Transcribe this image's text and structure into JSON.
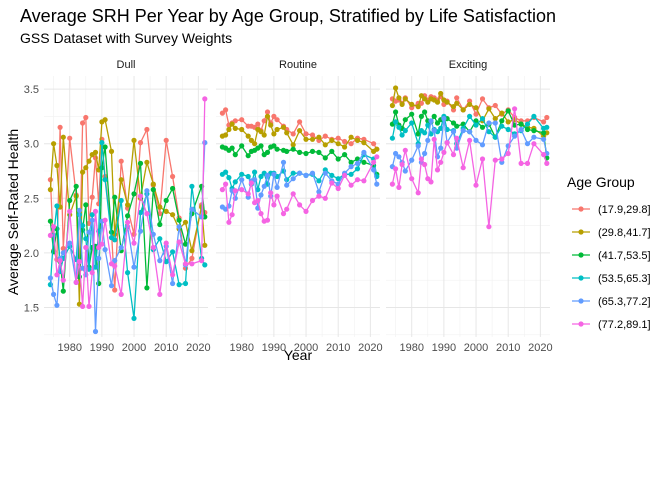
{
  "chart_data": {
    "type": "line",
    "title": "Average SRH Per Year by Age Group, Stratified by Life Satisfaction",
    "subtitle": "GSS Dataset with Survey Weights",
    "xlabel": "Year",
    "ylabel": "Average Self-Rated Health",
    "xlim": [
      1972,
      2023
    ],
    "ylim": [
      1.23,
      3.62
    ],
    "x_ticks": [
      "1980",
      "1990",
      "2000",
      "2010",
      "2020"
    ],
    "y_ticks": [
      "1.5",
      "2.0",
      "2.5",
      "3.0",
      "3.5"
    ],
    "grid": true,
    "legend": {
      "title": "Age Group",
      "position": "right",
      "entries": [
        "(17.9,29.8]",
        "(29.8,41.7]",
        "(41.7,53.5]",
        "(53.5,65.3]",
        "(65.3,77.2]",
        "(77.2,89.1]"
      ]
    },
    "colors": [
      "#F8766D",
      "#B79F00",
      "#00BA38",
      "#00BFC4",
      "#619CFF",
      "#F564E3"
    ],
    "years": [
      1974,
      1975,
      1976,
      1977,
      1978,
      1980,
      1982,
      1983,
      1984,
      1985,
      1986,
      1987,
      1988,
      1989,
      1990,
      1991,
      1993,
      1994,
      1996,
      1998,
      2000,
      2002,
      2004,
      2006,
      2008,
      2010,
      2012,
      2014,
      2016,
      2018,
      2021,
      2022
    ],
    "panels": [
      {
        "label": "Dull",
        "series": [
          {
            "values": [
              2.67,
              2.02,
              1.94,
              3.15,
              2.04,
              3.05,
              2.53,
              1.85,
              3.19,
              3.24,
              2.27,
              2.51,
              2.87,
              2.45,
              3.04,
              2.7,
              2.19,
              1.66,
              2.84,
              2.41,
              2.17,
              3.01,
              3.13,
              2.62,
              2.36,
              3.03,
              2.7,
              2.32,
              1.86,
              1.95,
              2.44,
              2.37
            ]
          },
          {
            "values": [
              2.58,
              3.0,
              2.8,
              2.42,
              3.06,
              2.35,
              2.52,
              1.53,
              2.74,
              2.78,
              2.84,
              2.9,
              2.92,
              2.76,
              3.2,
              3.22,
              2.93,
              2.17,
              2.67,
              2.44,
              3.03,
              2.5,
              2.83,
              2.63,
              2.42,
              2.38,
              2.35,
              2.22,
              2.28,
              2.02,
              2.42,
              2.07
            ]
          },
          {
            "values": [
              2.29,
              2.01,
              2.22,
              1.92,
              1.65,
              2.48,
              2.61,
              1.78,
              2.21,
              2.44,
              1.87,
              2.05,
              2.06,
              1.72,
              2.78,
              2.97,
              2.19,
              2.51,
              2.02,
              2.34,
              2.54,
              2.82,
              1.68,
              2.58,
              2.26,
              2.48,
              2.59,
              2.3,
              2.08,
              2.36,
              2.61,
              2.33
            ]
          },
          {
            "values": [
              1.71,
              2.16,
              2.43,
              1.83,
              1.95,
              2.06,
              1.94,
              2.35,
              2.25,
              2.13,
              1.85,
              2.35,
              1.87,
              2.2,
              3.01,
              2.67,
              2.14,
              2.12,
              2.48,
              1.82,
              1.4,
              2.37,
              2.54,
              2.03,
              2.13,
              1.92,
              2.01,
              1.71,
              1.72,
              2.61,
              1.95,
              1.89
            ]
          },
          {
            "values": [
              1.77,
              1.62,
              1.52,
              1.95,
              2.0,
              2.09,
              1.73,
              2.39,
              1.86,
              1.8,
              2.19,
              2.3,
              1.28,
              1.95,
              2.29,
              2.03,
              1.7,
              1.93,
              2.05,
              2.24,
              1.87,
              2.2,
              2.57,
              2.17,
              1.93,
              2.06,
              1.72,
              2.24,
              1.89,
              2.4,
              2.33,
              3.01
            ]
          },
          {
            "values": [
              2.16,
              2.24,
              1.8,
              1.93,
              1.75,
              2.38,
              1.73,
              1.92,
              1.51,
              2.05,
              1.51,
              1.82,
              2.38,
              2.05,
              2.08,
              2.3,
              1.9,
              1.88,
              1.62,
              2.28,
              2.09,
              2.52,
              2.36,
              2.05,
              1.62,
              2.09,
              1.8,
              2.1,
              1.9,
              1.9,
              1.93,
              3.41
            ]
          }
        ]
      },
      {
        "label": "Routine",
        "series": [
          {
            "values": [
              3.28,
              3.31,
              3.17,
              3.19,
              3.21,
              3.22,
              3.16,
              3.16,
              3.15,
              3.18,
              3.12,
              3.21,
              3.29,
              3.19,
              3.25,
              3.22,
              3.16,
              3.13,
              3.09,
              3.2,
              3.09,
              3.08,
              3.03,
              3.07,
              3.04,
              3.05,
              3.02,
              3.0,
              3.05,
              3.04,
              3.0,
              2.95
            ]
          },
          {
            "values": [
              3.07,
              3.08,
              3.13,
              3.18,
              3.14,
              3.13,
              3.07,
              3.03,
              3.0,
              3.13,
              3.11,
              3.08,
              3.25,
              3.17,
              3.09,
              3.13,
              3.15,
              3.1,
              2.99,
              3.12,
              3.04,
              3.04,
              3.06,
              2.99,
              3.03,
              3.0,
              2.97,
              3.06,
              3.03,
              3.01,
              2.93,
              2.95
            ]
          },
          {
            "values": [
              2.97,
              2.96,
              2.94,
              2.96,
              2.9,
              2.98,
              2.89,
              2.93,
              2.94,
              2.96,
              2.98,
              2.9,
              2.92,
              2.97,
              2.98,
              2.95,
              2.94,
              2.93,
              2.95,
              2.92,
              2.91,
              2.93,
              2.92,
              2.87,
              2.93,
              2.86,
              2.9,
              2.83,
              2.86,
              2.83,
              2.8,
              2.72
            ]
          },
          {
            "values": [
              2.72,
              2.74,
              2.69,
              2.59,
              2.65,
              2.72,
              2.7,
              2.63,
              2.74,
              2.58,
              2.7,
              2.73,
              2.63,
              2.73,
              2.73,
              2.7,
              2.75,
              2.67,
              2.73,
              2.73,
              2.71,
              2.72,
              2.66,
              2.76,
              2.71,
              2.68,
              2.72,
              2.72,
              2.77,
              2.9,
              2.86,
              2.7
            ]
          },
          {
            "values": [
              2.42,
              2.4,
              2.43,
              2.57,
              2.5,
              2.67,
              2.51,
              2.66,
              2.67,
              2.41,
              2.53,
              2.61,
              2.71,
              2.52,
              2.72,
              2.6,
              2.83,
              2.62,
              2.68,
              2.73,
              2.71,
              2.73,
              2.56,
              2.73,
              2.66,
              2.63,
              2.73,
              2.79,
              2.82,
              2.92,
              2.76,
              2.63
            ]
          },
          {
            "values": [
              2.58,
              2.63,
              2.28,
              2.35,
              2.57,
              2.58,
              2.54,
              2.64,
              2.46,
              2.48,
              2.36,
              2.29,
              2.3,
              2.55,
              2.44,
              2.52,
              2.36,
              2.4,
              2.54,
              2.44,
              2.38,
              2.48,
              2.52,
              2.5,
              2.64,
              2.59,
              2.71,
              2.62,
              2.67,
              2.66,
              2.83,
              2.88
            ]
          }
        ]
      },
      {
        "label": "Exciting",
        "series": [
          {
            "values": [
              3.41,
              3.39,
              3.4,
              3.37,
              3.42,
              3.33,
              3.37,
              3.37,
              3.44,
              3.4,
              3.43,
              3.42,
              3.4,
              3.43,
              3.36,
              3.39,
              3.31,
              3.42,
              3.31,
              3.39,
              3.27,
              3.41,
              3.33,
              3.35,
              3.27,
              3.31,
              3.24,
              3.21,
              3.21,
              3.24,
              3.2,
              3.24
            ]
          },
          {
            "values": [
              3.35,
              3.51,
              3.42,
              3.36,
              3.41,
              3.36,
              3.34,
              3.44,
              3.41,
              3.38,
              3.41,
              3.4,
              3.38,
              3.46,
              3.4,
              3.38,
              3.34,
              3.37,
              3.31,
              3.36,
              3.33,
              3.21,
              3.32,
              3.23,
              3.28,
              3.2,
              3.22,
              3.18,
              3.15,
              3.14,
              3.07,
              3.1
            ]
          },
          {
            "values": [
              3.18,
              3.29,
              3.17,
              3.14,
              3.22,
              3.27,
              3.09,
              3.25,
              3.29,
              3.21,
              3.2,
              3.25,
              3.19,
              3.22,
              3.23,
              3.23,
              3.19,
              3.16,
              3.18,
              3.11,
              3.21,
              3.15,
              3.18,
              3.06,
              3.21,
              3.3,
              3.17,
              3.18,
              3.13,
              3.12,
              3.1,
              2.87
            ]
          },
          {
            "values": [
              3.05,
              3.2,
              3.15,
              3.08,
              3.12,
              3.19,
              3.0,
              3.12,
              3.1,
              3.17,
              3.09,
              3.13,
              3.11,
              3.14,
              3.25,
              3.13,
              3.12,
              3.0,
              3.14,
              3.25,
              3.17,
              3.23,
              3.11,
              3.06,
              3.16,
              3.13,
              3.09,
              3.12,
              3.18,
              3.25,
              3.14,
              3.15
            ]
          },
          {
            "values": [
              2.79,
              2.91,
              2.88,
              2.83,
              2.75,
              2.85,
              2.98,
              2.83,
              2.91,
              3.03,
              3.21,
              3.12,
              2.88,
              2.96,
              3.23,
              3.01,
              3.11,
              2.96,
              3.12,
              3.11,
              3.03,
              2.99,
              3.19,
              3.19,
              2.83,
              2.98,
              3.07,
              3.13,
              3.0,
              3.06,
              3.04,
              2.91
            ]
          },
          {
            "values": [
              2.63,
              2.77,
              2.6,
              2.81,
              2.94,
              2.68,
              2.55,
              2.86,
              2.81,
              2.68,
              2.65,
              3.04,
              2.76,
              2.83,
              2.92,
              3.01,
              2.9,
              3.05,
              2.78,
              3.03,
              2.62,
              2.86,
              2.24,
              2.85,
              2.86,
              2.91,
              3.32,
              2.82,
              2.82,
              3.0,
              2.9,
              2.82
            ]
          }
        ]
      }
    ]
  }
}
